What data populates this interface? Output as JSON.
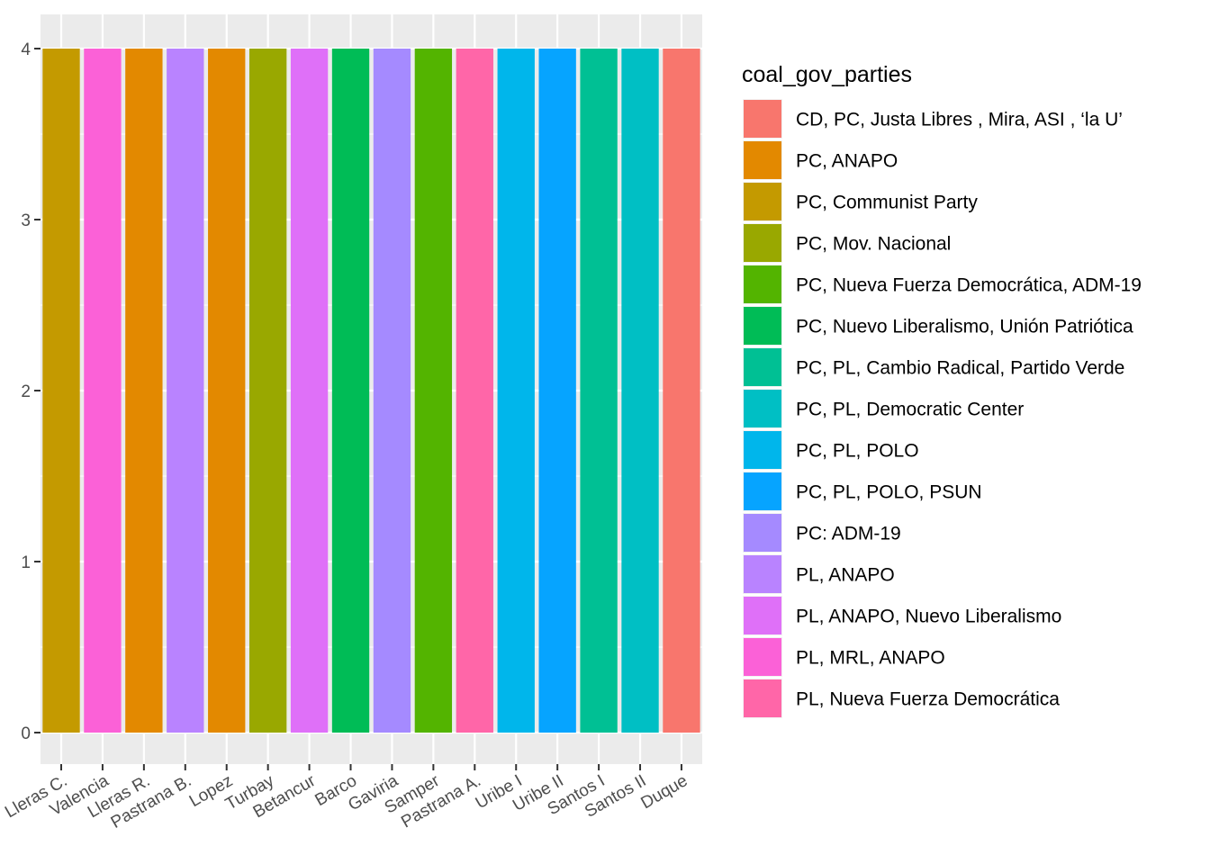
{
  "chart_data": {
    "type": "bar",
    "categories": [
      "Lleras C.",
      "Valencia",
      "Lleras R.",
      "Pastrana B.",
      "Lopez",
      "Turbay",
      "Betancur",
      "Barco",
      "Gaviria",
      "Samper",
      "Pastrana A.",
      "Uribe I",
      "Uribe II",
      "Santos I",
      "Santos II",
      "Duque"
    ],
    "values": [
      4,
      4,
      4,
      4,
      4,
      4,
      4,
      4,
      4,
      4,
      4,
      4,
      4,
      4,
      4,
      4
    ],
    "fill_groups": [
      "PC, Communist Party",
      "PL, MRL, ANAPO",
      "PC, ANAPO",
      "PL, ANAPO",
      "PC, ANAPO",
      "PC, Mov. Nacional",
      "PL, ANAPO, Nuevo Liberalismo",
      "PC, Nuevo Liberalismo, Unión Patriótica",
      "PC: ADM-19",
      "PC, Nueva Fuerza Democrática, ADM-19",
      "PL, Nueva Fuerza Democrática",
      "PC, PL, POLO",
      "PC, PL, POLO, PSUN",
      "PC, PL, Cambio Radical, Partido Verde",
      "PC, PL, Democratic Center",
      "CD, PC, Justa Libres , Mira, ASI , ‘la U’"
    ],
    "ylim": [
      0,
      4
    ],
    "yticks": [
      0,
      1,
      2,
      3,
      4
    ],
    "grid": true,
    "legend": {
      "title": "coal_gov_parties",
      "position": "right",
      "entries": [
        {
          "label": "CD, PC, Justa Libres , Mira, ASI , ‘la U’",
          "color": "#F8766D"
        },
        {
          "label": "PC, ANAPO",
          "color": "#E38900"
        },
        {
          "label": "PC, Communist Party",
          "color": "#C49A00"
        },
        {
          "label": "PC, Mov. Nacional",
          "color": "#99A800"
        },
        {
          "label": "PC, Nueva Fuerza Democrática, ADM-19",
          "color": "#53B400"
        },
        {
          "label": "PC, Nuevo Liberalismo, Unión Patriótica",
          "color": "#00BC56"
        },
        {
          "label": "PC, PL, Cambio Radical, Partido Verde",
          "color": "#00C094"
        },
        {
          "label": "PC, PL, Democratic Center",
          "color": "#00BFC4"
        },
        {
          "label": "PC, PL, POLO",
          "color": "#00B6EB"
        },
        {
          "label": "PC, PL, POLO, PSUN",
          "color": "#06A4FF"
        },
        {
          "label": "PC: ADM-19",
          "color": "#A58AFF"
        },
        {
          "label": "PL, ANAPO",
          "color": "#B983FF"
        },
        {
          "label": "PL, ANAPO, Nuevo Liberalismo",
          "color": "#DF70F8"
        },
        {
          "label": "PL, MRL, ANAPO",
          "color": "#FB61D7"
        },
        {
          "label": "PL, Nueva Fuerza Democrática",
          "color": "#FF66A8"
        }
      ]
    },
    "panel_background": "#EBEBEB",
    "grid_color": "#FFFFFF"
  }
}
